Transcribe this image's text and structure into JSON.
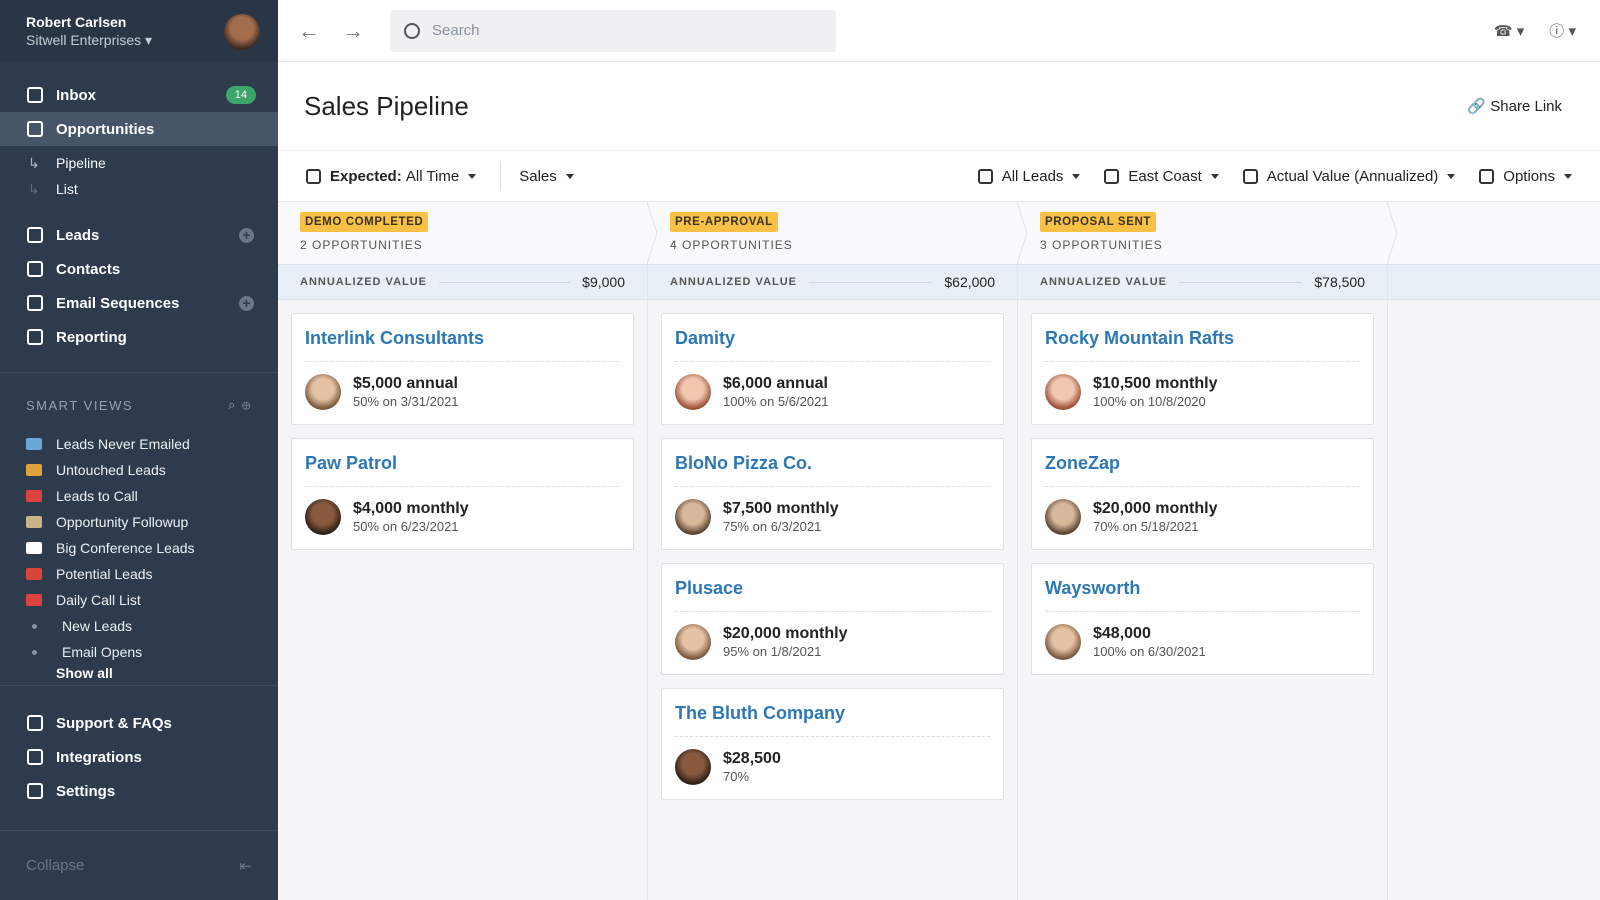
{
  "account": {
    "name": "Robert Carlsen",
    "company": "Sitwell Enterprises"
  },
  "nav_main": [
    {
      "label": "Inbox",
      "badge": 14
    },
    {
      "label": "Opportunities",
      "active": true
    }
  ],
  "opportunity_views": [
    "Pipeline",
    "List"
  ],
  "nav_records": [
    {
      "label": "Leads",
      "add": true
    },
    {
      "label": "Contacts"
    },
    {
      "label": "Email Sequences",
      "add": true
    },
    {
      "label": "Reporting"
    }
  ],
  "smart_views": {
    "title": "SMART VIEWS",
    "items": [
      "Leads Never Emailed",
      "Untouched Leads",
      "Leads to Call",
      "Opportunity Followup",
      "Big Conference Leads",
      "Potential Leads",
      "Daily Call List",
      "New Leads",
      "Email Opens"
    ],
    "show_all": "Show all"
  },
  "nav_footer": [
    "Support & FAQs",
    "Integrations",
    "Settings"
  ],
  "collapse": "Collapse",
  "search": {
    "placeholder": "Search"
  },
  "page": {
    "title": "Sales Pipeline",
    "share": "Share Link"
  },
  "filters": {
    "expected": {
      "label": "Expected:",
      "value": "All Time"
    },
    "pipeline": "Sales",
    "right": [
      "All Leads",
      "East Coast",
      "Actual Value (Annualized)",
      "Options"
    ]
  },
  "columns": [
    {
      "stage": "DEMO COMPLETED",
      "count": "2 OPPORTUNITIES",
      "value_label": "ANNUALIZED VALUE",
      "value": "$9,000",
      "cards": [
        {
          "name": "Interlink Consultants",
          "amount": "$5,000 annual",
          "detail": "50% on 3/31/2021"
        },
        {
          "name": "Paw Patrol",
          "amount": "$4,000 monthly",
          "detail": "50% on 6/23/2021"
        }
      ]
    },
    {
      "stage": "PRE-APPROVAL",
      "count": "4 OPPORTUNITIES",
      "value_label": "ANNUALIZED VALUE",
      "value": "$62,000",
      "cards": [
        {
          "name": "Damity",
          "amount": "$6,000 annual",
          "detail": "100% on 5/6/2021"
        },
        {
          "name": "BloNo Pizza Co.",
          "amount": "$7,500 monthly",
          "detail": "75% on 6/3/2021"
        },
        {
          "name": "Plusace",
          "amount": "$20,000 monthly",
          "detail": "95% on 1/8/2021"
        },
        {
          "name": "The Bluth Company",
          "amount": "$28,500",
          "detail": "70%"
        }
      ]
    },
    {
      "stage": "PROPOSAL SENT",
      "count": "3 OPPORTUNITIES",
      "value_label": "ANNUALIZED VALUE",
      "value": "$78,500",
      "cards": [
        {
          "name": "Rocky Mountain Rafts",
          "amount": "$10,500 monthly",
          "detail": "100% on 10/8/2020"
        },
        {
          "name": "ZoneZap",
          "amount": "$20,000 monthly",
          "detail": "70% on 5/18/2021"
        },
        {
          "name": "Waysworth",
          "amount": "$48,000",
          "detail": "100% on 6/30/2021"
        }
      ]
    }
  ]
}
